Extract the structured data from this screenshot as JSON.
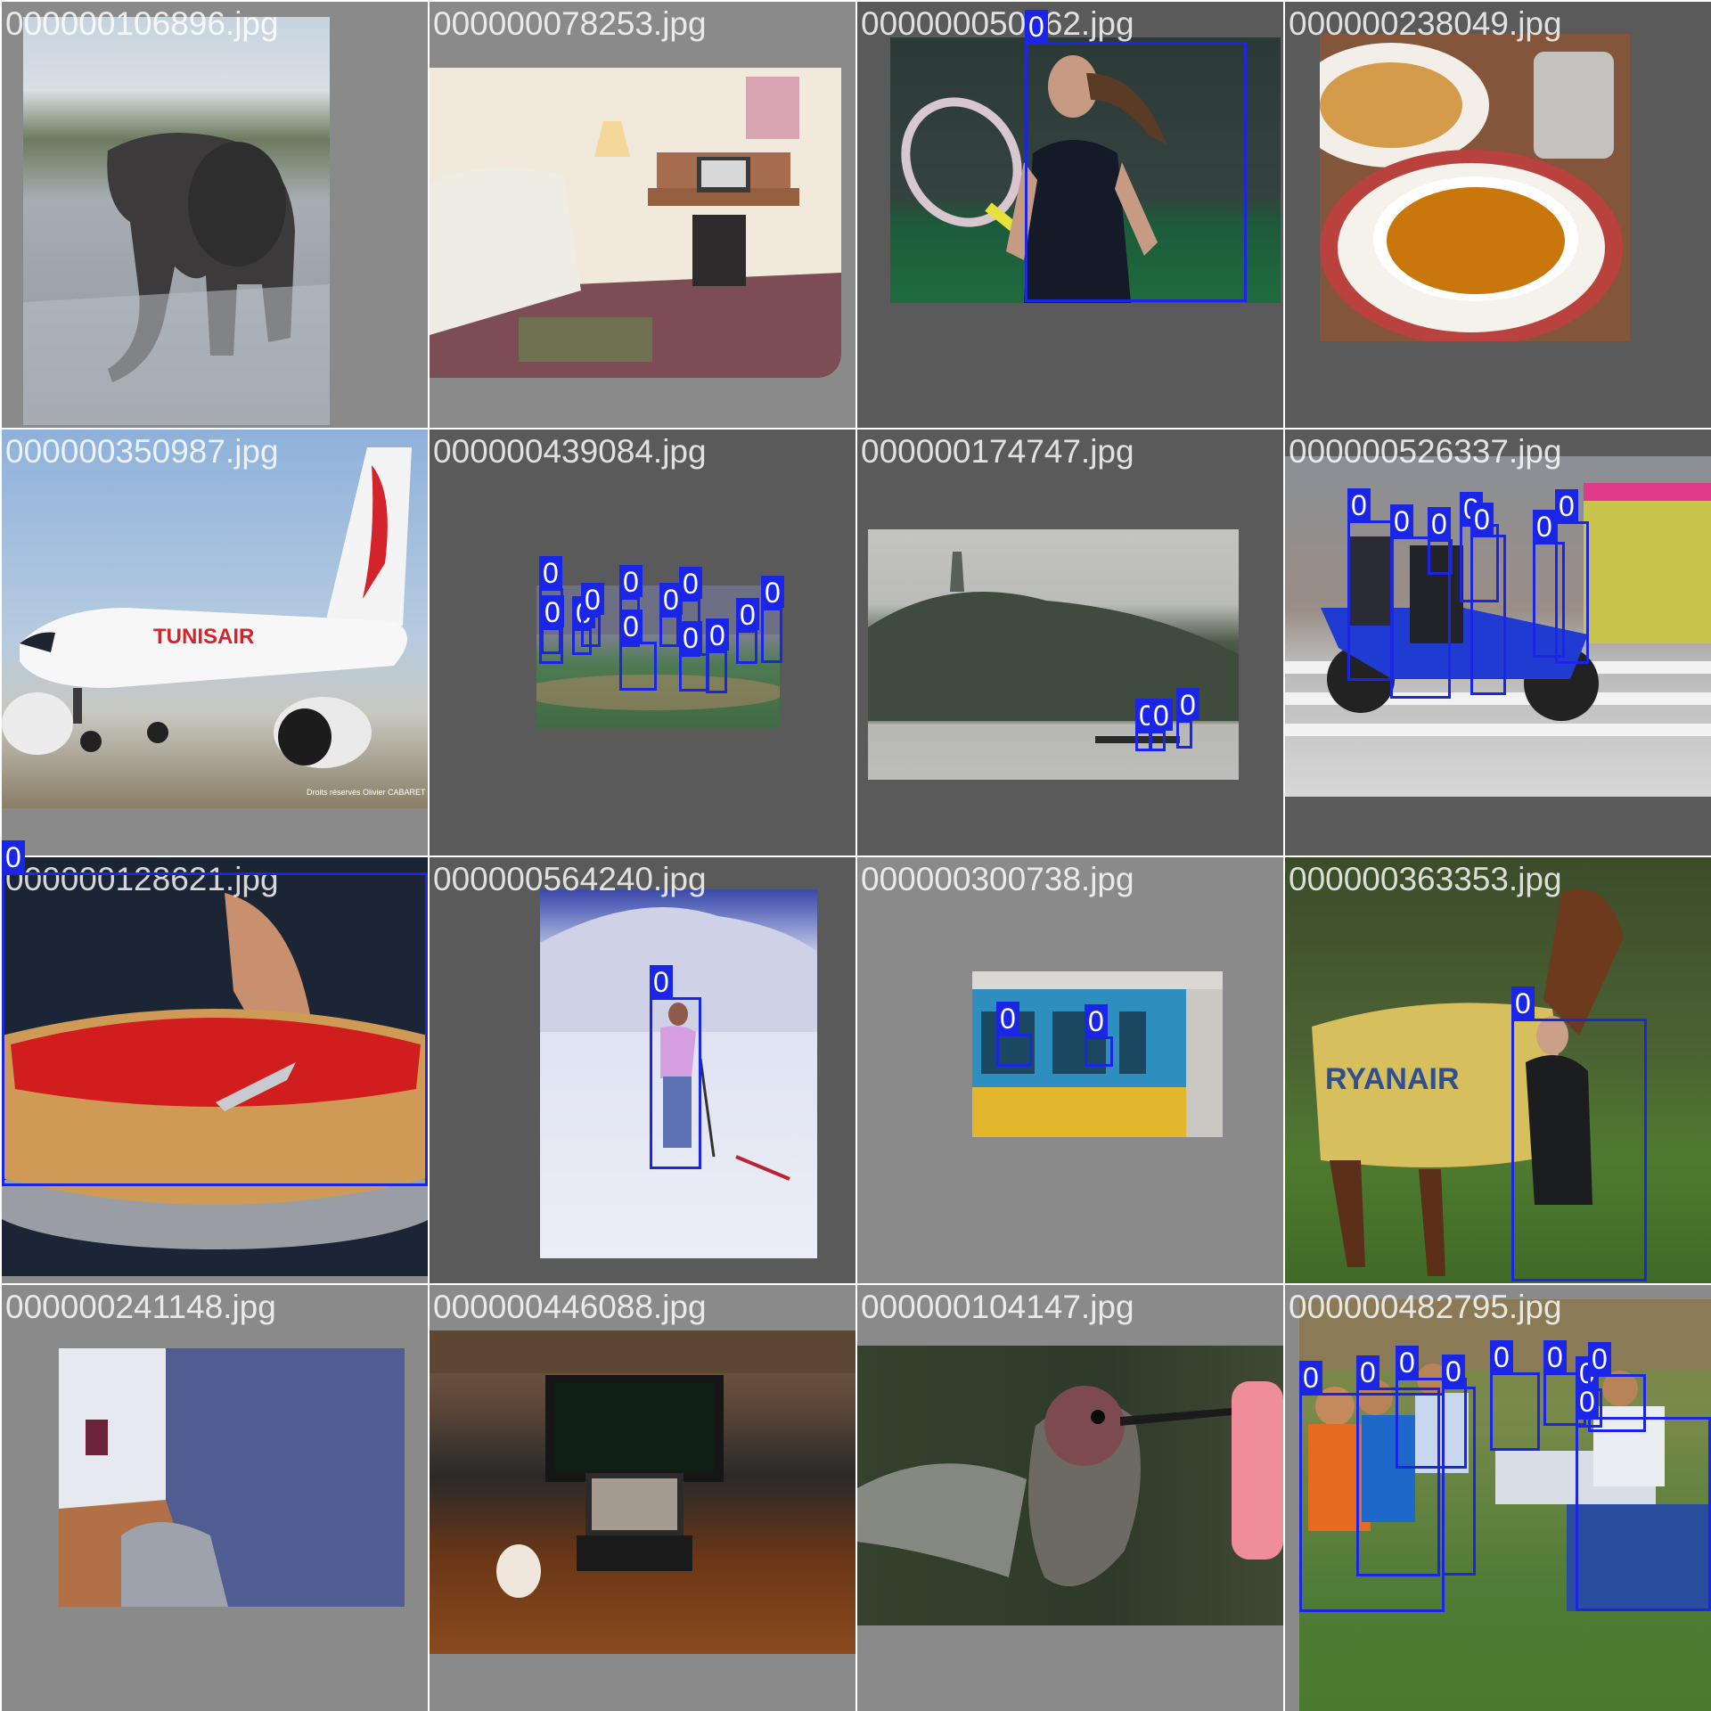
{
  "mosaic": {
    "tiles": [
      {
        "filename": "000000106896.jpg",
        "detections": []
      },
      {
        "filename": "000000078253.jpg",
        "detections": []
      },
      {
        "filename": "000000050262.jpg",
        "detections": [
          "0"
        ]
      },
      {
        "filename": "000000238049.jpg",
        "detections": []
      },
      {
        "filename": "000000350987.jpg",
        "detections": []
      },
      {
        "filename": "000000439084.jpg",
        "detections": [
          "0",
          "0",
          "0",
          "0",
          "0",
          "0",
          "0",
          "0",
          "0",
          "0",
          "0",
          "0"
        ]
      },
      {
        "filename": "000000174747.jpg",
        "detections": [
          "0",
          "0",
          "0"
        ]
      },
      {
        "filename": "000000526337.jpg",
        "detections": [
          "0",
          "0",
          "0",
          "0",
          "0",
          "0",
          "0"
        ]
      },
      {
        "filename": "000000128621.jpg",
        "detections": [
          "0"
        ]
      },
      {
        "filename": "000000564240.jpg",
        "detections": [
          "0"
        ]
      },
      {
        "filename": "000000300738.jpg",
        "detections": [
          "0",
          "0"
        ]
      },
      {
        "filename": "000000363353.jpg",
        "detections": [
          "0"
        ]
      },
      {
        "filename": "000000241148.jpg",
        "detections": []
      },
      {
        "filename": "000000446088.jpg",
        "detections": []
      },
      {
        "filename": "000000104147.jpg",
        "detections": []
      },
      {
        "filename": "000000482795.jpg",
        "detections": [
          "0",
          "0",
          "0",
          "0",
          "0",
          "0",
          "0",
          "0",
          "0"
        ]
      }
    ],
    "photo_watermark": "Droits réservés Olivier CABARET",
    "airline_livery": "TUNISAIR",
    "horse_blanket_text": "RYANAIR",
    "colors": {
      "box": "#1a25e6",
      "label_text": "#ffffff",
      "filename_text": "#ffffff"
    }
  }
}
